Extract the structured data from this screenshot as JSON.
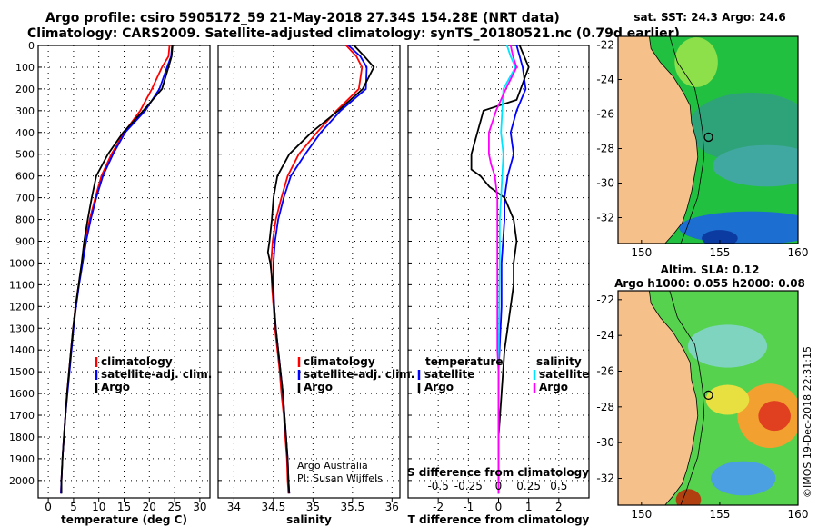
{
  "header": {
    "line1": "Argo profile: csiro 5905172_59 21-May-2018 27.34S 154.28E (NRT data)",
    "line2": "Climatology: CARS2009. Satellite-adjusted climatology: synTS_20180521.nc (0.79d earlier)"
  },
  "map_sst": {
    "title": "sat. SST: 24.3 Argo: 24.6"
  },
  "map_sla": {
    "title1": "Altim. SLA: 0.12",
    "title2": "Argo h1000: 0.055 h2000: 0.08"
  },
  "credit": {
    "line1": "Argo Australia",
    "line2": "PI: Susan Wijffels"
  },
  "stamp": "©IMOS 19-Dec-2018 22:31:15",
  "colors": {
    "climatology": "#ff0000",
    "satellite": "#0000ff",
    "argo": "#000000",
    "sat_sal": "#00e5ff",
    "argo_sal": "#ff00ff",
    "land": "#f5c08a"
  },
  "chart_data": [
    {
      "type": "line",
      "title": "temperature",
      "xlabel": "temperature (deg C)",
      "ylabel": "depth",
      "xlim": [
        -2,
        32
      ],
      "ylim": [
        2080,
        0
      ],
      "xticks": [
        "0",
        "5",
        "10",
        "15",
        "20",
        "25",
        "30"
      ],
      "xtick_values": [
        0,
        5,
        10,
        15,
        20,
        25,
        30
      ],
      "yticks": [
        "0",
        "100",
        "200",
        "300",
        "400",
        "500",
        "600",
        "700",
        "800",
        "900",
        "1000",
        "1100",
        "1200",
        "1300",
        "1400",
        "1500",
        "1600",
        "1700",
        "1800",
        "1900",
        "2000"
      ],
      "legend": [
        "climatology",
        "satellite-adj. clim.",
        "Argo"
      ],
      "series": [
        {
          "name": "climatology",
          "points": [
            [
              24,
              0
            ],
            [
              23.8,
              50
            ],
            [
              22.5,
              100
            ],
            [
              20.5,
              200
            ],
            [
              18.2,
              300
            ],
            [
              15,
              400
            ],
            [
              12.5,
              500
            ],
            [
              10.5,
              600
            ],
            [
              9.3,
              700
            ],
            [
              8.2,
              800
            ],
            [
              7.3,
              900
            ],
            [
              6.7,
              1000
            ],
            [
              6,
              1100
            ],
            [
              5.4,
              1200
            ],
            [
              4.9,
              1300
            ],
            [
              4.5,
              1400
            ],
            [
              4.1,
              1500
            ],
            [
              3.7,
              1600
            ],
            [
              3.4,
              1700
            ],
            [
              3.1,
              1800
            ],
            [
              2.8,
              1900
            ],
            [
              2.6,
              2000
            ],
            [
              2.5,
              2060
            ]
          ]
        },
        {
          "name": "satellite-adj. clim.",
          "points": [
            [
              24.5,
              0
            ],
            [
              24.3,
              50
            ],
            [
              23.5,
              100
            ],
            [
              22,
              200
            ],
            [
              19.2,
              300
            ],
            [
              15.2,
              400
            ],
            [
              12.8,
              500
            ],
            [
              10.8,
              600
            ],
            [
              9.5,
              700
            ],
            [
              8.4,
              800
            ],
            [
              7.5,
              900
            ],
            [
              6.8,
              1000
            ],
            [
              6.1,
              1100
            ],
            [
              5.5,
              1200
            ],
            [
              5,
              1300
            ],
            [
              4.6,
              1400
            ],
            [
              4.2,
              1500
            ],
            [
              3.8,
              1600
            ],
            [
              3.4,
              1700
            ],
            [
              3.1,
              1800
            ],
            [
              2.8,
              1900
            ],
            [
              2.6,
              2000
            ],
            [
              2.5,
              2060
            ]
          ]
        },
        {
          "name": "Argo",
          "points": [
            [
              24.6,
              0
            ],
            [
              24.4,
              50
            ],
            [
              23.8,
              100
            ],
            [
              22.5,
              200
            ],
            [
              18.8,
              300
            ],
            [
              14.8,
              400
            ],
            [
              11.8,
              500
            ],
            [
              9.5,
              600
            ],
            [
              8.6,
              700
            ],
            [
              7.8,
              800
            ],
            [
              7.1,
              900
            ],
            [
              6.6,
              1000
            ],
            [
              6,
              1100
            ],
            [
              5.4,
              1200
            ],
            [
              4.9,
              1300
            ],
            [
              4.5,
              1400
            ],
            [
              4.1,
              1500
            ],
            [
              3.7,
              1600
            ],
            [
              3.4,
              1700
            ],
            [
              3.1,
              1800
            ],
            [
              2.8,
              1900
            ],
            [
              2.6,
              2000
            ],
            [
              2.6,
              2060
            ]
          ]
        }
      ]
    },
    {
      "type": "line",
      "title": "salinity",
      "xlabel": "salinity",
      "ylabel": "depth",
      "xlim": [
        33.8,
        36.1
      ],
      "ylim": [
        2080,
        0
      ],
      "xticks": [
        "34",
        "34.5",
        "35",
        "35.5",
        "36"
      ],
      "xtick_values": [
        34,
        34.5,
        35,
        35.5,
        36
      ],
      "legend": [
        "climatology",
        "satellite-adj. clim.",
        "Argo"
      ],
      "series": [
        {
          "name": "climatology",
          "points": [
            [
              35.42,
              0
            ],
            [
              35.55,
              50
            ],
            [
              35.62,
              100
            ],
            [
              35.58,
              200
            ],
            [
              35.3,
              300
            ],
            [
              35.05,
              400
            ],
            [
              34.82,
              500
            ],
            [
              34.68,
              600
            ],
            [
              34.6,
              700
            ],
            [
              34.53,
              800
            ],
            [
              34.49,
              900
            ],
            [
              34.47,
              1000
            ],
            [
              34.48,
              1100
            ],
            [
              34.5,
              1200
            ],
            [
              34.52,
              1300
            ],
            [
              34.55,
              1400
            ],
            [
              34.58,
              1500
            ],
            [
              34.6,
              1600
            ],
            [
              34.63,
              1700
            ],
            [
              34.65,
              1800
            ],
            [
              34.67,
              1900
            ],
            [
              34.68,
              2000
            ],
            [
              34.69,
              2060
            ]
          ]
        },
        {
          "name": "satellite-adj. clim.",
          "points": [
            [
              35.45,
              0
            ],
            [
              35.6,
              50
            ],
            [
              35.68,
              100
            ],
            [
              35.67,
              200
            ],
            [
              35.35,
              300
            ],
            [
              35.1,
              400
            ],
            [
              34.9,
              500
            ],
            [
              34.72,
              600
            ],
            [
              34.63,
              700
            ],
            [
              34.56,
              800
            ],
            [
              34.52,
              900
            ],
            [
              34.5,
              1000
            ],
            [
              34.5,
              1100
            ],
            [
              34.51,
              1200
            ],
            [
              34.53,
              1300
            ],
            [
              34.56,
              1400
            ],
            [
              34.59,
              1500
            ],
            [
              34.62,
              1600
            ],
            [
              34.64,
              1700
            ],
            [
              34.66,
              1800
            ],
            [
              34.68,
              1900
            ],
            [
              34.69,
              2000
            ],
            [
              34.7,
              2060
            ]
          ]
        },
        {
          "name": "Argo",
          "points": [
            [
              35.52,
              0
            ],
            [
              35.65,
              50
            ],
            [
              35.77,
              100
            ],
            [
              35.63,
              200
            ],
            [
              35.32,
              300
            ],
            [
              34.98,
              400
            ],
            [
              34.7,
              500
            ],
            [
              34.55,
              600
            ],
            [
              34.5,
              700
            ],
            [
              34.48,
              800
            ],
            [
              34.45,
              900
            ],
            [
              34.43,
              950
            ],
            [
              34.46,
              1000
            ],
            [
              34.49,
              1100
            ],
            [
              34.51,
              1200
            ],
            [
              34.53,
              1300
            ],
            [
              34.56,
              1400
            ],
            [
              34.59,
              1500
            ],
            [
              34.62,
              1600
            ],
            [
              34.64,
              1700
            ],
            [
              34.66,
              1800
            ],
            [
              34.68,
              1900
            ],
            [
              34.69,
              2000
            ],
            [
              34.7,
              2060
            ]
          ]
        }
      ]
    },
    {
      "type": "line",
      "title": "difference from climatology",
      "xlabel": "T difference from climatology",
      "xlabel2": "S difference from climatology",
      "xlim": [
        -3,
        3
      ],
      "ylim": [
        2080,
        0
      ],
      "xticks": [
        "-2",
        "-1",
        "0",
        "1",
        "2"
      ],
      "xtick_values": [
        -2,
        -1,
        0,
        1,
        2
      ],
      "xticks_S": [
        "-0.5",
        "-0.25",
        "0",
        "0.25",
        "0.5"
      ],
      "xtick_S_values": [
        -0.5,
        -0.25,
        0,
        0.25,
        0.5
      ],
      "legend_left_title": "temperature",
      "legend_right_title": "salinity",
      "legend_left": [
        "satellite",
        "Argo"
      ],
      "legend_right": [
        "satellite",
        "Argo"
      ],
      "series": [
        {
          "name": "T satellite",
          "points": [
            [
              0.6,
              0
            ],
            [
              0.8,
              100
            ],
            [
              0.9,
              200
            ],
            [
              0.6,
              300
            ],
            [
              0.4,
              400
            ],
            [
              0.5,
              500
            ],
            [
              0.3,
              600
            ],
            [
              0.2,
              700
            ],
            [
              0.2,
              800
            ],
            [
              0.1,
              1000
            ],
            [
              0.1,
              1200
            ],
            [
              0,
              1500
            ],
            [
              0,
              2060
            ]
          ]
        },
        {
          "name": "T Argo",
          "points": [
            [
              0.7,
              0
            ],
            [
              1,
              100
            ],
            [
              0.6,
              250
            ],
            [
              -0.5,
              300
            ],
            [
              -0.9,
              500
            ],
            [
              -0.9,
              570
            ],
            [
              -0.6,
              600
            ],
            [
              -0.3,
              650
            ],
            [
              0.2,
              700
            ],
            [
              0.5,
              800
            ],
            [
              0.6,
              900
            ],
            [
              0.5,
              1000
            ],
            [
              0.5,
              1100
            ],
            [
              0.4,
              1200
            ],
            [
              0.3,
              1300
            ],
            [
              0.2,
              1400
            ],
            [
              0.1,
              1600
            ],
            [
              0,
              1800
            ],
            [
              0,
              2060
            ]
          ]
        },
        {
          "name": "S satellite",
          "points": [
            [
              0.07,
              0
            ],
            [
              0.1,
              50
            ],
            [
              0.14,
              100
            ],
            [
              0.04,
              200
            ],
            [
              0.02,
              400
            ],
            [
              0.04,
              500
            ],
            [
              0.02,
              700
            ],
            [
              0.01,
              800
            ],
            [
              0.01,
              1000
            ],
            [
              0,
              1500
            ],
            [
              0,
              2060
            ]
          ]
        },
        {
          "name": "S Argo",
          "points": [
            [
              0.1,
              0
            ],
            [
              0.12,
              50
            ],
            [
              0.15,
              100
            ],
            [
              0.06,
              200
            ],
            [
              -0.02,
              300
            ],
            [
              -0.08,
              400
            ],
            [
              -0.08,
              500
            ],
            [
              -0.06,
              550
            ],
            [
              -0.03,
              600
            ],
            [
              -0.01,
              700
            ],
            [
              -0.01,
              1000
            ],
            [
              -0.01,
              1400
            ],
            [
              0,
              1500
            ],
            [
              0,
              2060
            ]
          ]
        }
      ]
    }
  ],
  "map_axes": {
    "lon_ticks": [
      "150",
      "155",
      "160"
    ],
    "lon_values": [
      150,
      155,
      160
    ],
    "lat_ticks": [
      "-22",
      "-24",
      "-26",
      "-28",
      "-30",
      "-32"
    ],
    "lat_values": [
      -22,
      -24,
      -26,
      -28,
      -30,
      -32
    ],
    "lon_range": [
      148.5,
      160
    ],
    "lat_range": [
      -33.5,
      -21.5
    ],
    "float_position": [
      154.28,
      -27.34
    ]
  }
}
